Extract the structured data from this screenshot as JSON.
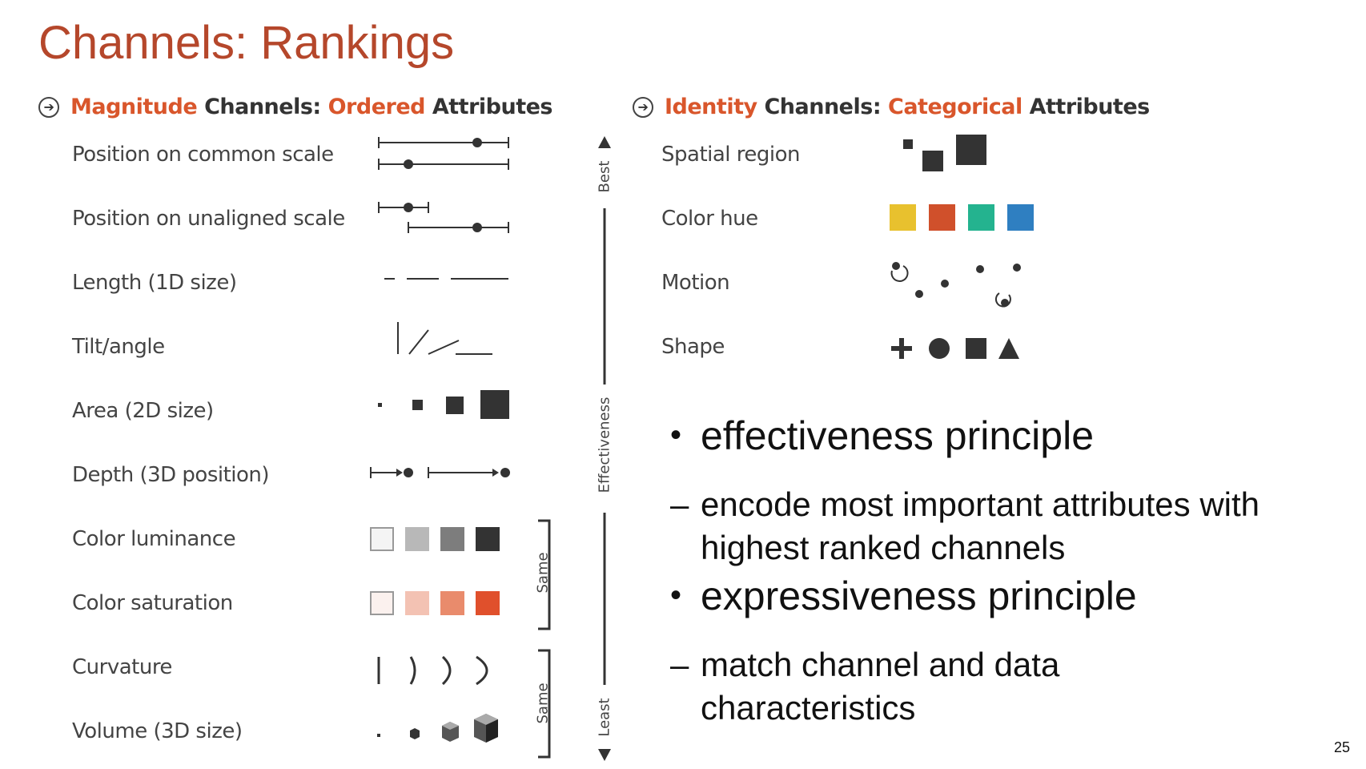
{
  "slide": {
    "title": "Channels: Rankings",
    "page_number": "25"
  },
  "magnitude": {
    "head_word1": "Magnitude",
    "head_word2": " Channels: ",
    "head_word3": "Ordered",
    "head_word4": " Attributes",
    "rows": [
      {
        "label": "Position on common scale"
      },
      {
        "label": "Position on unaligned scale"
      },
      {
        "label": "Length (1D size)"
      },
      {
        "label": "Tilt/angle"
      },
      {
        "label": "Area (2D size)"
      },
      {
        "label": "Depth (3D position)"
      },
      {
        "label": "Color luminance"
      },
      {
        "label": "Color saturation"
      },
      {
        "label": "Curvature"
      },
      {
        "label": "Volume (3D size)"
      }
    ]
  },
  "identity": {
    "head_word1": "Identity",
    "head_word2": " Channels: ",
    "head_word3": "Categorical",
    "head_word4": " Attributes",
    "rows": [
      {
        "label": "Spatial region"
      },
      {
        "label": "Color hue"
      },
      {
        "label": "Motion"
      },
      {
        "label": "Shape"
      }
    ],
    "hue_colors": [
      "#e8c12e",
      "#d0502b",
      "#24b38f",
      "#2f7fc1"
    ]
  },
  "axis": {
    "best": "Best",
    "effectiveness": "Effectiveness",
    "least": "Least",
    "same1": "Same",
    "same2": "Same"
  },
  "colors": {
    "luminance": [
      "#f4f4f4",
      "#b8b8b8",
      "#7d7d7d",
      "#333333"
    ],
    "saturation": [
      "#fbf1ee",
      "#f3c2b3",
      "#e98b6c",
      "#e0502c"
    ],
    "accent": "#d9562b",
    "title": "#b5472b"
  },
  "bullets": {
    "p1": "effectiveness principle",
    "p1_sub": "encode most important attributes with highest ranked channels",
    "p2": "expressiveness principle",
    "p2_sub": "match channel and data characteristics"
  }
}
